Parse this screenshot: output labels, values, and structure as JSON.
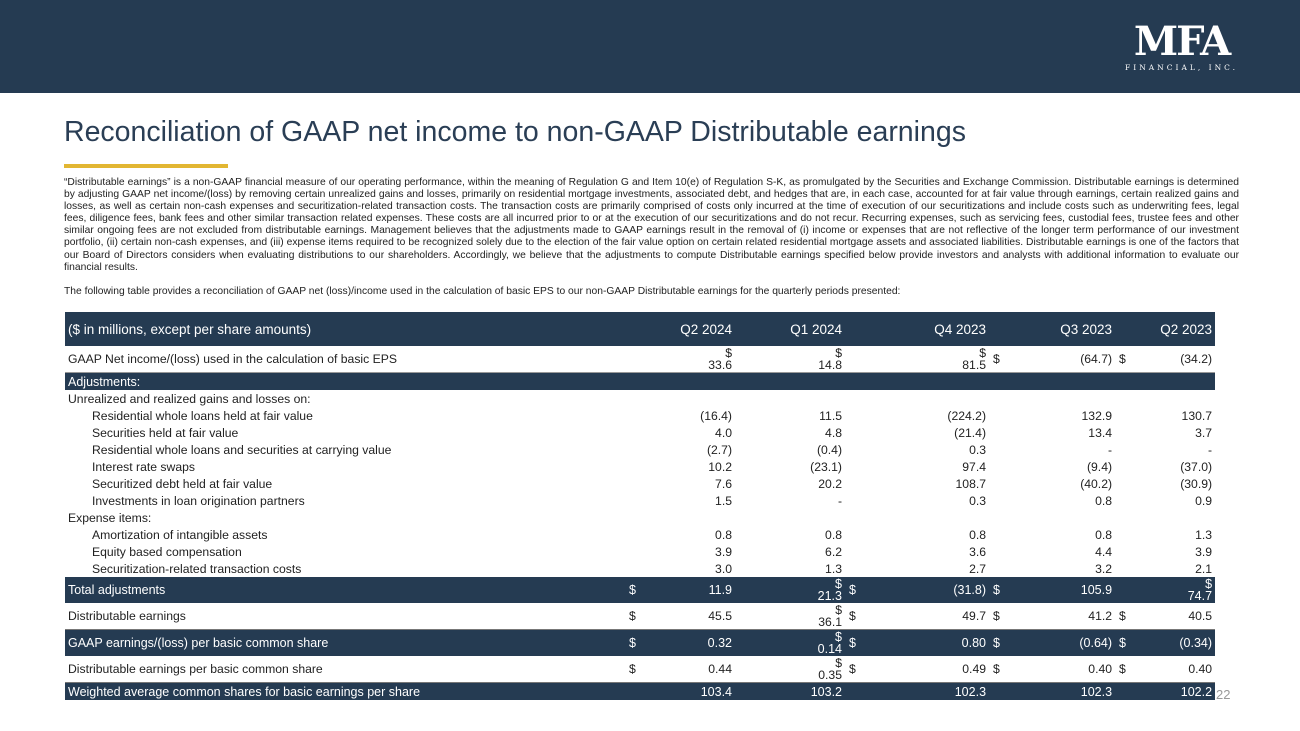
{
  "header": {
    "logo_main": "MFA",
    "logo_sub": "FINANCIAL, INC."
  },
  "title": "Reconciliation of GAAP net income to non-GAAP Distributable earnings",
  "description": "“Distributable earnings” is a non-GAAP financial measure of our operating performance, within the meaning of Regulation G and Item 10(e) of Regulation S-K, as promulgated by the Securities and Exchange Commission. Distributable earnings is determined by adjusting GAAP net income/(loss) by removing certain unrealized gains and losses, primarily on residential mortgage investments, associated debt, and hedges that are, in each case, accounted for at fair value through earnings, certain realized gains and losses, as well as certain non-cash expenses and securitization-related transaction costs. The transaction costs are primarily comprised of costs only incurred at the time of execution of our securitizations and include costs such as underwriting fees, legal fees, diligence fees, bank fees and other similar transaction related expenses. These costs are all incurred prior to or at the execution of our securitizations and do not recur. Recurring expenses, such as servicing fees, custodial fees, trustee fees and other similar ongoing fees are not excluded from distributable earnings. Management believes that the adjustments made to GAAP earnings result in the removal of (i) income or expenses that are not reflective of the longer term performance of our investment portfolio, (ii) certain non-cash expenses, and (iii) expense items required to be recognized solely due to the election of the fair value option on certain related residential mortgage assets and associated liabilities.  Distributable earnings is one of the factors that our Board of Directors considers when evaluating distributions to our shareholders.  Accordingly, we believe that the adjustments to compute Distributable earnings specified below provide investors and analysts with additional information to evaluate our financial results.",
  "description_2": "The following table provides a reconciliation of GAAP net (loss)/income used in the calculation of basic EPS to our non-GAAP Distributable earnings for the quarterly periods presented:",
  "table": {
    "header": {
      "label": "($ in millions, except per share amounts)",
      "periods": [
        "Q2 2024",
        "Q1 2024",
        "Q4 2023",
        "Q3 2023",
        "Q2 2023"
      ]
    },
    "currency": "$",
    "gaap_net_income": {
      "label": "GAAP Net income/(loss) used in the calculation of basic EPS",
      "values": [
        "33.6",
        "14.8",
        "81.5",
        "(64.7)",
        "(34.2)"
      ]
    },
    "adjustments_label": "Adjustments:",
    "unrealized_label": "Unrealized and realized gains and losses on:",
    "unrealized_items": [
      {
        "label": "Residential whole loans held at fair value",
        "values": [
          "(16.4)",
          "11.5",
          "(224.2)",
          "132.9",
          "130.7"
        ]
      },
      {
        "label": "Securities held at fair value",
        "values": [
          "4.0",
          "4.8",
          "(21.4)",
          "13.4",
          "3.7"
        ]
      },
      {
        "label": "Residential whole loans and securities at carrying value",
        "values": [
          "(2.7)",
          "(0.4)",
          "0.3",
          "-",
          "-"
        ]
      },
      {
        "label": "Interest rate swaps",
        "values": [
          "10.2",
          "(23.1)",
          "97.4",
          "(9.4)",
          "(37.0)"
        ]
      },
      {
        "label": "Securitized debt held at fair value",
        "values": [
          "7.6",
          "20.2",
          "108.7",
          "(40.2)",
          "(30.9)"
        ]
      },
      {
        "label": "Investments in loan origination partners",
        "values": [
          "1.5",
          "-",
          "0.3",
          "0.8",
          "0.9"
        ]
      }
    ],
    "expense_label": "Expense items:",
    "expense_items": [
      {
        "label": "Amortization of intangible assets",
        "values": [
          "0.8",
          "0.8",
          "0.8",
          "0.8",
          "1.3"
        ]
      },
      {
        "label": "Equity based compensation",
        "values": [
          "3.9",
          "6.2",
          "3.6",
          "4.4",
          "3.9"
        ]
      },
      {
        "label": " Securitization-related transaction costs",
        "values": [
          "3.0",
          "1.3",
          "2.7",
          "3.2",
          "2.1"
        ]
      }
    ],
    "total_adjustments": {
      "label": "Total adjustments",
      "values": [
        "11.9",
        "21.3",
        "(31.8)",
        "105.9",
        "74.7"
      ]
    },
    "distributable_earnings": {
      "label": "Distributable earnings",
      "values": [
        "45.5",
        "36.1",
        "49.7",
        "41.2",
        "40.5"
      ]
    },
    "gaap_eps": {
      "label": "GAAP earnings/(loss) per basic common share",
      "values": [
        "0.32",
        "0.14",
        "0.80",
        "(0.64)",
        "(0.34)"
      ]
    },
    "distributable_eps": {
      "label": "Distributable earnings per basic common share",
      "values": [
        "0.44",
        "0.35",
        "0.49",
        "0.40",
        "0.40"
      ]
    },
    "weighted_shares": {
      "label": "Weighted average common shares for basic earnings per share",
      "values": [
        "103.4",
        "103.2",
        "102.3",
        "102.3",
        "102.2"
      ]
    }
  },
  "page_number": "22"
}
